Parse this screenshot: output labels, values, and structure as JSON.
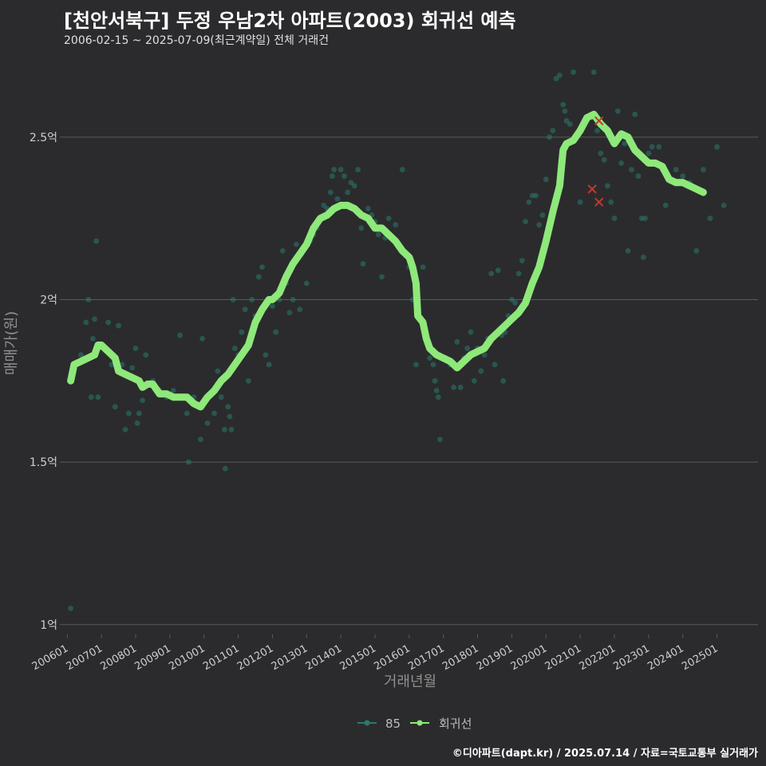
{
  "title": "[천안서북구] 두정 우남2차 아파트(2003) 회귀선 예측",
  "subtitle": "2006-02-15 ~ 2025-07-09(최근계약일) 전체 거래건",
  "footer": "©디아파트(dapt.kr) / 2025.07.14 / 자료=국토교통부 실거래가",
  "colors": {
    "background": "#2b2b2d",
    "grid": "#5a5a5a",
    "scatter": "#2a7a6e",
    "regression": "#8ee87a",
    "outlier": "#c0392b",
    "text": "#cfcfcf"
  },
  "chart_data": {
    "type": "scatter",
    "xlabel": "거래년월",
    "ylabel": "매매가(원)",
    "xlim": [
      2005.9,
      2026.2
    ],
    "ylim": [
      0.97,
      2.75
    ],
    "y_ticks": [
      1,
      1.5,
      2,
      2.5
    ],
    "y_tick_labels": [
      "1억",
      "1.5억",
      "2억",
      "2.5억"
    ],
    "x_ticks": [
      2006,
      2007,
      2008,
      2009,
      2010,
      2011,
      2012,
      2013,
      2014,
      2015,
      2016,
      2017,
      2018,
      2019,
      2020,
      2021,
      2022,
      2023,
      2024,
      2025
    ],
    "x_tick_labels": [
      "200601",
      "200701",
      "200801",
      "200901",
      "201001",
      "201101",
      "201201",
      "201301",
      "201401",
      "201501",
      "201601",
      "201701",
      "201801",
      "201901",
      "202001",
      "202101",
      "202201",
      "202301",
      "202401",
      "202501"
    ],
    "legend": [
      {
        "label": "85",
        "color": "#2a7a6e"
      },
      {
        "label": "회귀선",
        "color": "#8ee87a"
      }
    ],
    "series": [
      {
        "name": "85",
        "type": "scatter",
        "points": [
          [
            2006.1,
            1.05
          ],
          [
            2006.2,
            1.8
          ],
          [
            2006.4,
            1.83
          ],
          [
            2006.55,
            1.93
          ],
          [
            2006.62,
            2.0
          ],
          [
            2006.7,
            1.7
          ],
          [
            2006.75,
            1.88
          ],
          [
            2006.8,
            1.94
          ],
          [
            2006.85,
            2.18
          ],
          [
            2006.9,
            1.7
          ],
          [
            2007.0,
            1.86
          ],
          [
            2007.2,
            1.93
          ],
          [
            2007.3,
            1.8
          ],
          [
            2007.4,
            1.67
          ],
          [
            2007.5,
            1.92
          ],
          [
            2007.6,
            1.8
          ],
          [
            2007.7,
            1.6
          ],
          [
            2007.8,
            1.65
          ],
          [
            2007.9,
            1.79
          ],
          [
            2008.0,
            1.85
          ],
          [
            2008.05,
            1.62
          ],
          [
            2008.1,
            1.65
          ],
          [
            2008.2,
            1.69
          ],
          [
            2008.3,
            1.83
          ],
          [
            2008.5,
            1.75
          ],
          [
            2008.7,
            1.72
          ],
          [
            2008.9,
            1.7
          ],
          [
            2009.1,
            1.72
          ],
          [
            2009.3,
            1.89
          ],
          [
            2009.5,
            1.65
          ],
          [
            2009.55,
            1.5
          ],
          [
            2009.7,
            1.7
          ],
          [
            2009.9,
            1.57
          ],
          [
            2009.95,
            1.88
          ],
          [
            2010.1,
            1.62
          ],
          [
            2010.3,
            1.65
          ],
          [
            2010.4,
            1.78
          ],
          [
            2010.5,
            1.7
          ],
          [
            2010.6,
            1.6
          ],
          [
            2010.62,
            1.48
          ],
          [
            2010.7,
            1.67
          ],
          [
            2010.75,
            1.64
          ],
          [
            2010.8,
            1.6
          ],
          [
            2010.85,
            2.0
          ],
          [
            2010.9,
            1.85
          ],
          [
            2011.0,
            1.83
          ],
          [
            2011.1,
            1.9
          ],
          [
            2011.2,
            1.97
          ],
          [
            2011.3,
            1.75
          ],
          [
            2011.4,
            2.0
          ],
          [
            2011.5,
            1.95
          ],
          [
            2011.6,
            2.07
          ],
          [
            2011.7,
            2.1
          ],
          [
            2011.8,
            1.83
          ],
          [
            2011.9,
            1.8
          ],
          [
            2012.0,
            1.98
          ],
          [
            2012.1,
            1.9
          ],
          [
            2012.2,
            2.0
          ],
          [
            2012.3,
            2.15
          ],
          [
            2012.4,
            2.05
          ],
          [
            2012.5,
            1.96
          ],
          [
            2012.6,
            2.0
          ],
          [
            2012.7,
            2.17
          ],
          [
            2012.8,
            1.97
          ],
          [
            2013.0,
            2.05
          ],
          [
            2013.1,
            2.18
          ],
          [
            2013.2,
            2.2
          ],
          [
            2013.3,
            2.22
          ],
          [
            2013.4,
            2.25
          ],
          [
            2013.5,
            2.29
          ],
          [
            2013.6,
            2.28
          ],
          [
            2013.7,
            2.33
          ],
          [
            2013.75,
            2.38
          ],
          [
            2013.8,
            2.4
          ],
          [
            2013.9,
            2.31
          ],
          [
            2014.0,
            2.4
          ],
          [
            2014.1,
            2.38
          ],
          [
            2014.2,
            2.33
          ],
          [
            2014.3,
            2.36
          ],
          [
            2014.4,
            2.35
          ],
          [
            2014.5,
            2.4
          ],
          [
            2014.6,
            2.22
          ],
          [
            2014.65,
            2.11
          ],
          [
            2014.8,
            2.28
          ],
          [
            2014.9,
            2.26
          ],
          [
            2015.0,
            2.24
          ],
          [
            2015.1,
            2.2
          ],
          [
            2015.2,
            2.07
          ],
          [
            2015.3,
            2.19
          ],
          [
            2015.4,
            2.25
          ],
          [
            2015.6,
            2.23
          ],
          [
            2015.8,
            2.4
          ],
          [
            2015.9,
            2.14
          ],
          [
            2016.0,
            2.1
          ],
          [
            2016.1,
            2.0
          ],
          [
            2016.2,
            1.8
          ],
          [
            2016.4,
            2.1
          ],
          [
            2016.6,
            1.82
          ],
          [
            2016.7,
            1.8
          ],
          [
            2016.75,
            1.75
          ],
          [
            2016.8,
            1.72
          ],
          [
            2016.85,
            1.7
          ],
          [
            2016.9,
            1.57
          ],
          [
            2017.0,
            1.82
          ],
          [
            2017.2,
            1.8
          ],
          [
            2017.3,
            1.73
          ],
          [
            2017.4,
            1.87
          ],
          [
            2017.5,
            1.73
          ],
          [
            2017.6,
            1.82
          ],
          [
            2017.7,
            1.85
          ],
          [
            2017.8,
            1.9
          ],
          [
            2017.9,
            1.75
          ],
          [
            2018.0,
            1.85
          ],
          [
            2018.1,
            1.78
          ],
          [
            2018.2,
            1.83
          ],
          [
            2018.3,
            1.88
          ],
          [
            2018.4,
            2.08
          ],
          [
            2018.5,
            1.8
          ],
          [
            2018.6,
            2.09
          ],
          [
            2018.7,
            1.89
          ],
          [
            2018.75,
            1.75
          ],
          [
            2018.8,
            1.9
          ],
          [
            2018.85,
            1.92
          ],
          [
            2018.9,
            1.95
          ],
          [
            2019.0,
            2.0
          ],
          [
            2019.1,
            1.99
          ],
          [
            2019.2,
            2.08
          ],
          [
            2019.3,
            2.12
          ],
          [
            2019.4,
            2.24
          ],
          [
            2019.5,
            2.3
          ],
          [
            2019.6,
            2.32
          ],
          [
            2019.7,
            2.32
          ],
          [
            2019.8,
            2.23
          ],
          [
            2019.9,
            2.26
          ],
          [
            2020.0,
            2.37
          ],
          [
            2020.1,
            2.5
          ],
          [
            2020.2,
            2.52
          ],
          [
            2020.3,
            2.68
          ],
          [
            2020.4,
            2.69
          ],
          [
            2020.5,
            2.6
          ],
          [
            2020.55,
            2.58
          ],
          [
            2020.6,
            2.55
          ],
          [
            2020.7,
            2.54
          ],
          [
            2020.8,
            2.7
          ],
          [
            2021.0,
            2.3
          ],
          [
            2021.2,
            2.55
          ],
          [
            2021.4,
            2.7
          ],
          [
            2021.5,
            2.52
          ],
          [
            2021.6,
            2.45
          ],
          [
            2021.7,
            2.43
          ],
          [
            2021.8,
            2.35
          ],
          [
            2021.9,
            2.3
          ],
          [
            2022.0,
            2.25
          ],
          [
            2022.1,
            2.58
          ],
          [
            2022.2,
            2.42
          ],
          [
            2022.3,
            2.48
          ],
          [
            2022.4,
            2.15
          ],
          [
            2022.5,
            2.4
          ],
          [
            2022.6,
            2.57
          ],
          [
            2022.7,
            2.38
          ],
          [
            2022.8,
            2.25
          ],
          [
            2022.85,
            2.13
          ],
          [
            2022.9,
            2.25
          ],
          [
            2023.0,
            2.45
          ],
          [
            2023.1,
            2.47
          ],
          [
            2023.3,
            2.47
          ],
          [
            2023.4,
            2.4
          ],
          [
            2023.5,
            2.29
          ],
          [
            2023.8,
            2.4
          ],
          [
            2024.0,
            2.38
          ],
          [
            2024.2,
            2.36
          ],
          [
            2024.4,
            2.15
          ],
          [
            2024.6,
            2.4
          ],
          [
            2024.8,
            2.25
          ],
          [
            2025.0,
            2.47
          ],
          [
            2025.2,
            2.29
          ]
        ]
      },
      {
        "name": "회귀선",
        "type": "line",
        "points": [
          [
            2006.1,
            1.75
          ],
          [
            2006.2,
            1.8
          ],
          [
            2006.4,
            1.81
          ],
          [
            2006.6,
            1.82
          ],
          [
            2006.8,
            1.83
          ],
          [
            2006.9,
            1.86
          ],
          [
            2007.0,
            1.86
          ],
          [
            2007.2,
            1.84
          ],
          [
            2007.4,
            1.82
          ],
          [
            2007.5,
            1.78
          ],
          [
            2007.7,
            1.77
          ],
          [
            2007.9,
            1.76
          ],
          [
            2008.1,
            1.75
          ],
          [
            2008.2,
            1.73
          ],
          [
            2008.35,
            1.74
          ],
          [
            2008.5,
            1.74
          ],
          [
            2008.7,
            1.71
          ],
          [
            2008.9,
            1.71
          ],
          [
            2009.1,
            1.7
          ],
          [
            2009.3,
            1.7
          ],
          [
            2009.5,
            1.7
          ],
          [
            2009.7,
            1.68
          ],
          [
            2009.9,
            1.67
          ],
          [
            2010.1,
            1.7
          ],
          [
            2010.3,
            1.72
          ],
          [
            2010.5,
            1.75
          ],
          [
            2010.7,
            1.77
          ],
          [
            2010.9,
            1.8
          ],
          [
            2011.1,
            1.83
          ],
          [
            2011.3,
            1.86
          ],
          [
            2011.5,
            1.93
          ],
          [
            2011.7,
            1.97
          ],
          [
            2011.9,
            2.0
          ],
          [
            2012.0,
            2.0
          ],
          [
            2012.2,
            2.02
          ],
          [
            2012.4,
            2.07
          ],
          [
            2012.6,
            2.11
          ],
          [
            2012.8,
            2.14
          ],
          [
            2013.0,
            2.17
          ],
          [
            2013.2,
            2.22
          ],
          [
            2013.4,
            2.25
          ],
          [
            2013.6,
            2.26
          ],
          [
            2013.8,
            2.28
          ],
          [
            2014.0,
            2.29
          ],
          [
            2014.2,
            2.29
          ],
          [
            2014.4,
            2.28
          ],
          [
            2014.6,
            2.26
          ],
          [
            2014.8,
            2.25
          ],
          [
            2015.0,
            2.22
          ],
          [
            2015.2,
            2.22
          ],
          [
            2015.4,
            2.2
          ],
          [
            2015.6,
            2.18
          ],
          [
            2015.8,
            2.15
          ],
          [
            2016.0,
            2.13
          ],
          [
            2016.1,
            2.1
          ],
          [
            2016.2,
            2.05
          ],
          [
            2016.25,
            1.95
          ],
          [
            2016.4,
            1.93
          ],
          [
            2016.5,
            1.88
          ],
          [
            2016.6,
            1.85
          ],
          [
            2016.8,
            1.83
          ],
          [
            2017.0,
            1.82
          ],
          [
            2017.2,
            1.81
          ],
          [
            2017.4,
            1.79
          ],
          [
            2017.6,
            1.81
          ],
          [
            2017.8,
            1.83
          ],
          [
            2018.0,
            1.84
          ],
          [
            2018.2,
            1.85
          ],
          [
            2018.4,
            1.88
          ],
          [
            2018.6,
            1.9
          ],
          [
            2018.8,
            1.92
          ],
          [
            2019.0,
            1.94
          ],
          [
            2019.2,
            1.96
          ],
          [
            2019.4,
            1.99
          ],
          [
            2019.6,
            2.05
          ],
          [
            2019.8,
            2.1
          ],
          [
            2020.0,
            2.18
          ],
          [
            2020.2,
            2.27
          ],
          [
            2020.4,
            2.35
          ],
          [
            2020.5,
            2.46
          ],
          [
            2020.6,
            2.48
          ],
          [
            2020.8,
            2.49
          ],
          [
            2021.0,
            2.52
          ],
          [
            2021.2,
            2.56
          ],
          [
            2021.4,
            2.57
          ],
          [
            2021.6,
            2.54
          ],
          [
            2021.8,
            2.52
          ],
          [
            2022.0,
            2.48
          ],
          [
            2022.2,
            2.51
          ],
          [
            2022.4,
            2.5
          ],
          [
            2022.6,
            2.46
          ],
          [
            2022.8,
            2.44
          ],
          [
            2023.0,
            2.42
          ],
          [
            2023.2,
            2.42
          ],
          [
            2023.4,
            2.41
          ],
          [
            2023.6,
            2.37
          ],
          [
            2023.8,
            2.36
          ],
          [
            2024.0,
            2.36
          ],
          [
            2024.2,
            2.35
          ],
          [
            2024.4,
            2.34
          ],
          [
            2024.6,
            2.33
          ]
        ]
      },
      {
        "name": "outliers",
        "type": "marker-x",
        "points": [
          [
            2021.55,
            2.55
          ],
          [
            2021.55,
            2.3
          ],
          [
            2021.35,
            2.34
          ]
        ]
      }
    ]
  }
}
